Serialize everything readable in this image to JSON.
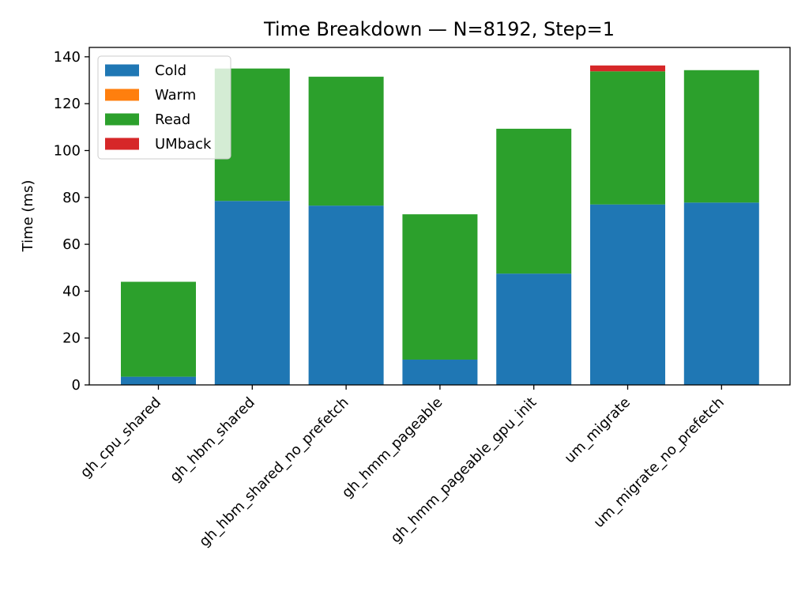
{
  "chart_data": {
    "type": "bar",
    "stacked": true,
    "title": "Time Breakdown — N=8192, Step=1",
    "xlabel": "",
    "ylabel": "Time (ms)",
    "ylim": [
      0,
      144
    ],
    "yticks": [
      0,
      20,
      40,
      60,
      80,
      100,
      120,
      140
    ],
    "grid": false,
    "legend_position": "top-left",
    "categories": [
      "gh_cpu_shared",
      "gh_hbm_shared",
      "gh_hbm_shared_no_prefetch",
      "gh_hmm_pageable",
      "gh_hmm_pageable_gpu_init",
      "um_migrate",
      "um_migrate_no_prefetch"
    ],
    "series": [
      {
        "name": "Cold",
        "color": "#1f77b4",
        "values": [
          3.5,
          78.5,
          76.5,
          10.8,
          47.5,
          77.0,
          77.8
        ]
      },
      {
        "name": "Warm",
        "color": "#ff7f0e",
        "values": [
          0,
          0,
          0,
          0,
          0,
          0,
          0
        ]
      },
      {
        "name": "Read",
        "color": "#2ca02c",
        "values": [
          40.5,
          56.5,
          55.0,
          62.0,
          61.8,
          56.8,
          56.5
        ]
      },
      {
        "name": "UMback",
        "color": "#d62728",
        "values": [
          0,
          0,
          0,
          0,
          0,
          2.5,
          0
        ]
      }
    ]
  }
}
